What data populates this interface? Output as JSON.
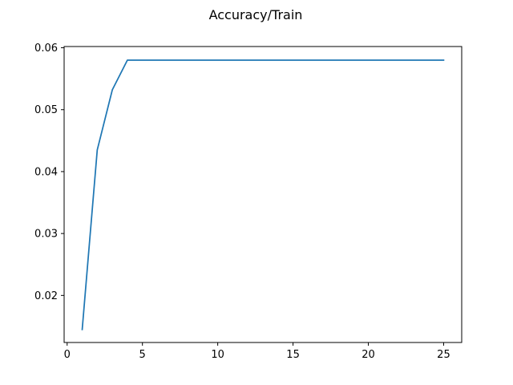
{
  "chart_data": {
    "type": "line",
    "title": "Accuracy/Train",
    "xlabel": "",
    "ylabel": "",
    "xlim": [
      -0.2,
      26.2
    ],
    "ylim": [
      0.0124,
      0.0602
    ],
    "x_ticks": [
      0,
      5,
      10,
      15,
      20,
      25
    ],
    "x_tick_labels": [
      "0",
      "5",
      "10",
      "15",
      "20",
      "25"
    ],
    "y_ticks": [
      0.02,
      0.03,
      0.04,
      0.05,
      0.06
    ],
    "y_tick_labels": [
      "0.02",
      "0.03",
      "0.04",
      "0.05",
      "0.06"
    ],
    "grid": false,
    "series": [
      {
        "color": "#1f77b4",
        "x": [
          1,
          2,
          3,
          4,
          5,
          6,
          7,
          8,
          9,
          10,
          11,
          12,
          13,
          14,
          15,
          16,
          17,
          18,
          19,
          20,
          21,
          22,
          23,
          24,
          25
        ],
        "values": [
          0.0145,
          0.0435,
          0.0532,
          0.058,
          0.058,
          0.058,
          0.058,
          0.058,
          0.058,
          0.058,
          0.058,
          0.058,
          0.058,
          0.058,
          0.058,
          0.058,
          0.058,
          0.058,
          0.058,
          0.058,
          0.058,
          0.058,
          0.058,
          0.058,
          0.058
        ]
      }
    ]
  }
}
